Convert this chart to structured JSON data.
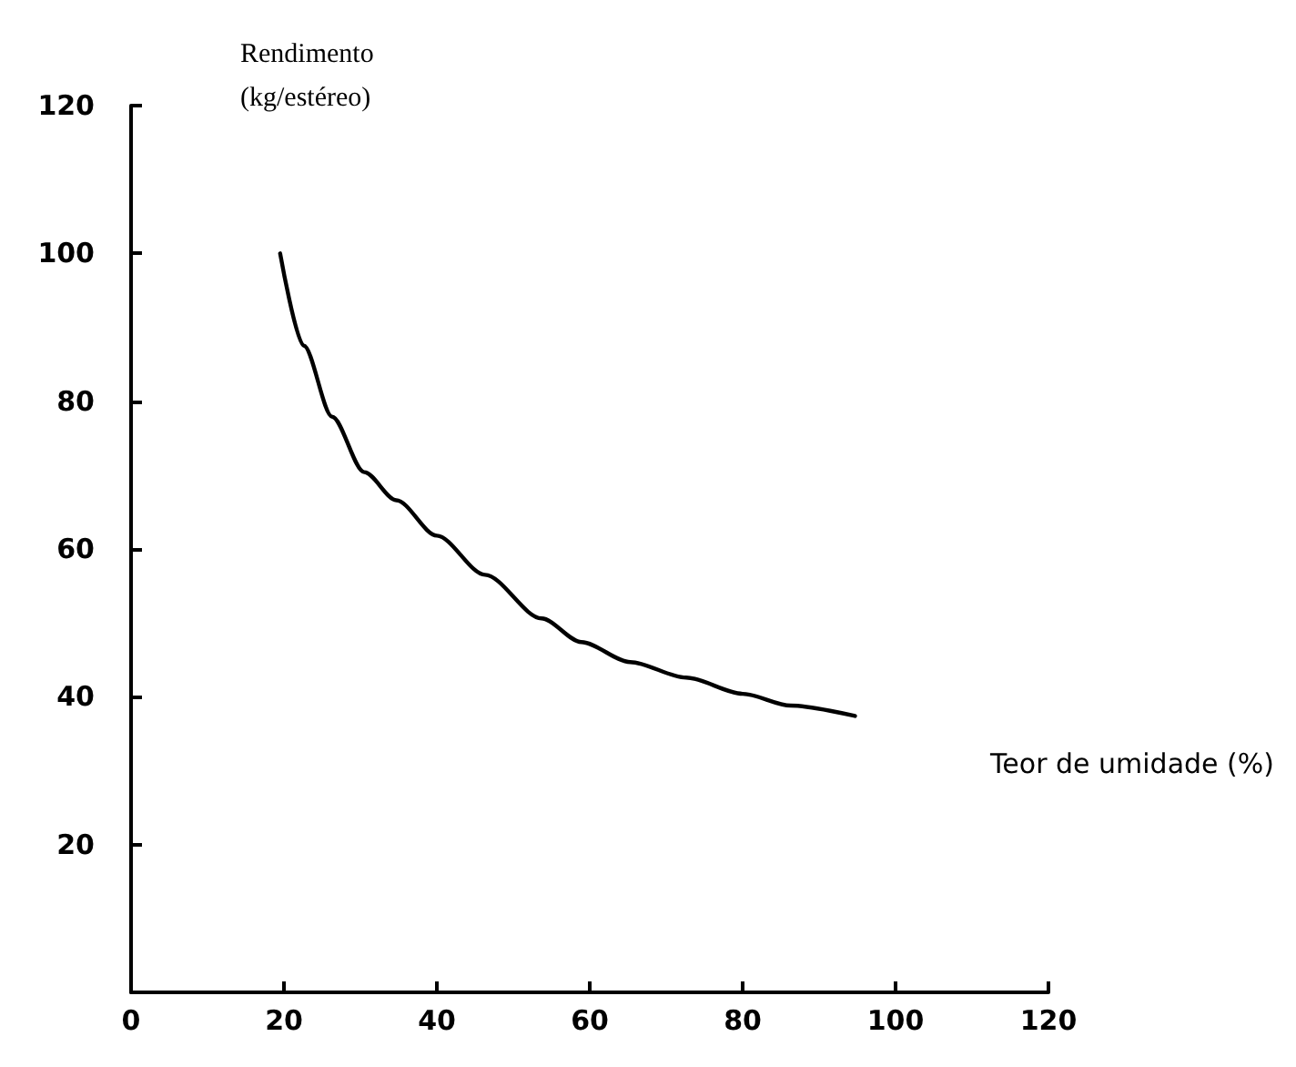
{
  "chart_data": {
    "type": "line",
    "xlabel": "Teor de umidade (%)",
    "ylabel": "Rendimento\n(kg/estéreo)",
    "x": [
      19.5,
      22.6,
      26.3,
      30.5,
      34.7,
      40,
      46.3,
      53.7,
      58.9,
      65.3,
      72.6,
      80,
      86.3,
      94.7
    ],
    "series": [
      {
        "color": "#000000",
        "values": [
          100,
          87.5,
          77.9,
          70.4,
          66.6,
          61.8,
          56.5,
          50.6,
          47.4,
          44.7,
          42.6,
          40.4,
          38.8,
          37.4
        ]
      }
    ],
    "xlim": [
      0,
      120
    ],
    "xticks": [
      0,
      20,
      40,
      60,
      80,
      100,
      120
    ],
    "ylim": [
      0,
      120
    ],
    "yticks": [
      20,
      40,
      60,
      80,
      100,
      120
    ],
    "grid": false,
    "marker": "none",
    "line_style": "solid"
  }
}
